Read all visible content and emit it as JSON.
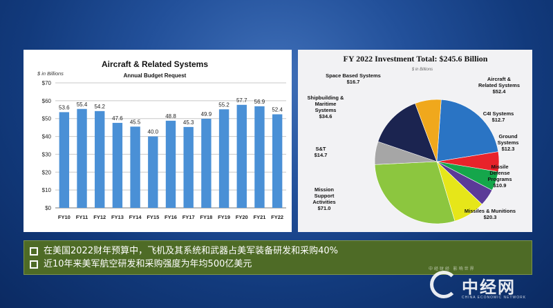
{
  "bar_panel": {
    "title": "Aircraft & Related Systems",
    "subtitle": "Annual Budget Request",
    "unit_label": "$ in Billions"
  },
  "pie_panel": {
    "title": "FY 2022 Investment Total: $245.6 Billion",
    "unit_label": "$ in Billions"
  },
  "caption": {
    "line1": "在美国2022财年预算中，飞机及其系统和武器占美军装备研发和采购40%",
    "line2": "近10年来美军航空研发和采购强度为年均500亿美元"
  },
  "watermark": {
    "brand": "中经网",
    "sub": "CHINA ECONOMIC NETWORK",
    "slogan": "中经财经 影响世界"
  },
  "colors": {
    "bar": "#4a90d6",
    "caption_bg": "#4e6b26"
  },
  "chart_data": [
    {
      "type": "bar",
      "title": "Aircraft & Related Systems",
      "subtitle": "Annual Budget Request",
      "ylabel": "$ in Billions",
      "categories": [
        "FY10",
        "FY11",
        "FY12",
        "FY13",
        "FY14",
        "FY15",
        "FY16",
        "FY17",
        "FY18",
        "FY19",
        "FY20",
        "FY21",
        "FY22"
      ],
      "values": [
        53.6,
        55.4,
        54.2,
        47.6,
        45.5,
        40.0,
        48.8,
        45.3,
        49.9,
        55.2,
        57.7,
        56.9,
        52.4
      ],
      "value_labels": [
        "53.6",
        "55.4",
        "54.2",
        "47.6",
        "45.5",
        "40.0",
        "48.8",
        "45.3",
        "49.9",
        "55.2",
        "57.7",
        "56.9",
        "52.4"
      ],
      "ylim": [
        0,
        70
      ],
      "yticks": [
        0,
        10,
        20,
        30,
        40,
        50,
        60,
        70
      ],
      "ytick_labels": [
        "$0",
        "$10",
        "$20",
        "$30",
        "$40",
        "$50",
        "$60",
        "$70"
      ],
      "grid": true
    },
    {
      "type": "pie",
      "title": "FY 2022 Investment Total: $245.6 Billion",
      "unit": "$ in Billions",
      "slices": [
        {
          "label": "Aircraft & Related Systems",
          "value": 52.4,
          "value_label": "$52.4",
          "color": "#2a74c4"
        },
        {
          "label": "C4I Systems",
          "value": 12.7,
          "value_label": "$12.7",
          "color": "#e8232a"
        },
        {
          "label": "Ground Systems",
          "value": 12.3,
          "value_label": "$12.3",
          "color": "#15a64b"
        },
        {
          "label": "Missile Defense Programs",
          "value": 10.9,
          "value_label": "$10.9",
          "color": "#5b3a98"
        },
        {
          "label": "Missiles & Munitions",
          "value": 20.3,
          "value_label": "$20.3",
          "color": "#e6e619"
        },
        {
          "label": "Mission Support Activities",
          "value": 71.0,
          "value_label": "$71.0",
          "color": "#8cc63f"
        },
        {
          "label": "S&T",
          "value": 14.7,
          "value_label": "$14.7",
          "color": "#a6a6a6"
        },
        {
          "label": "Shipbuilding & Maritime Systems",
          "value": 34.6,
          "value_label": "$34.6",
          "color": "#1b2450"
        },
        {
          "label": "Space Based Systems",
          "value": 16.7,
          "value_label": "$16.7",
          "color": "#f0a81c"
        }
      ]
    }
  ]
}
